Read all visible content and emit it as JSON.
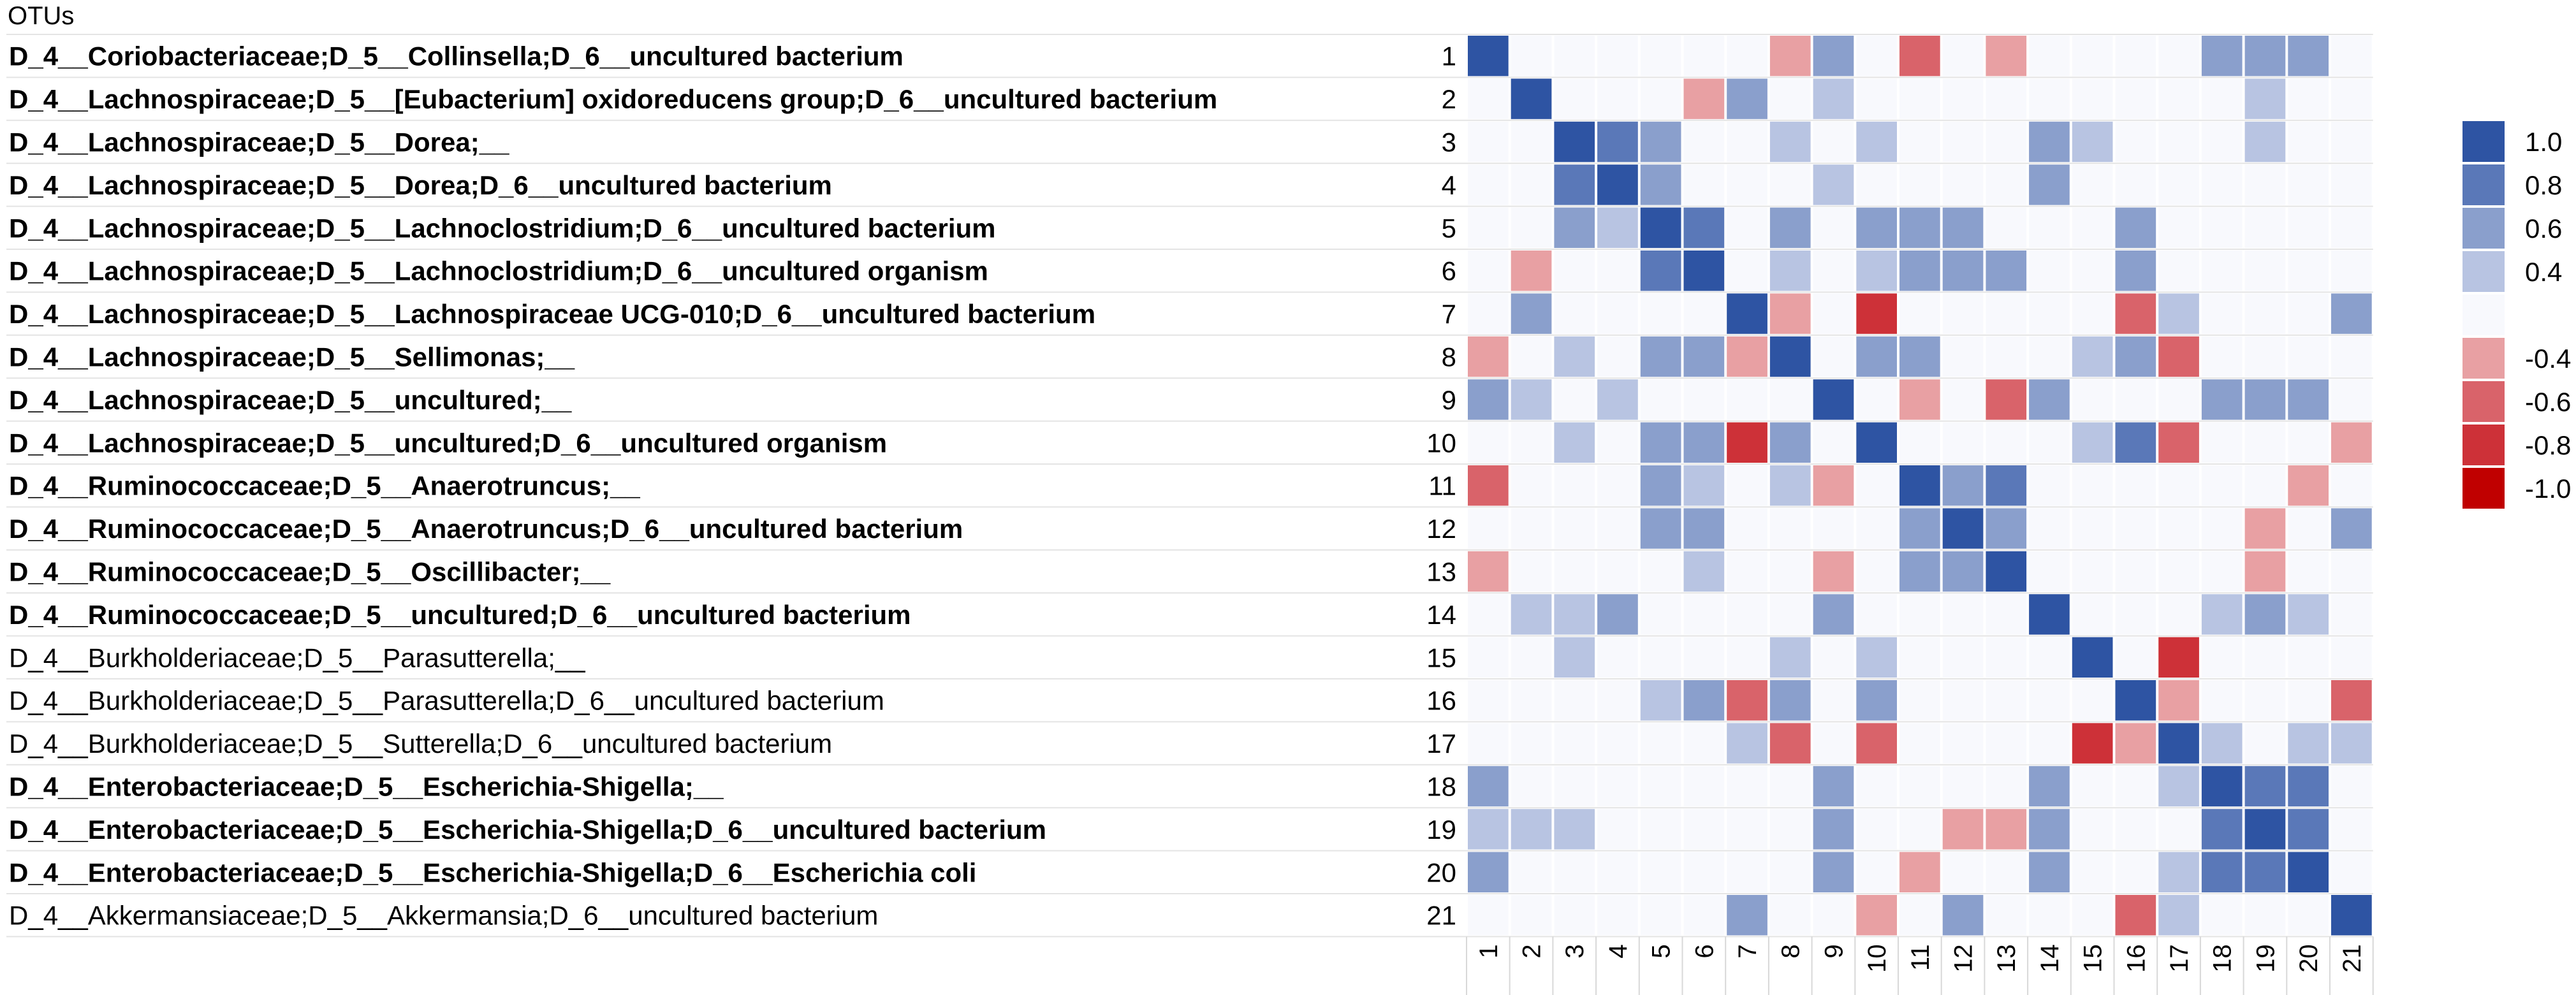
{
  "chart_data": {
    "type": "heatmap",
    "header": "OTUs",
    "rows": [
      {
        "label": "D_4__Coriobacteriaceae;D_5__Collinsella;D_6__uncultured bacterium",
        "bold": true
      },
      {
        "label": "D_4__Lachnospiraceae;D_5__[Eubacterium] oxidoreducens group;D_6__uncultured bacterium",
        "bold": true
      },
      {
        "label": "D_4__Lachnospiraceae;D_5__Dorea;__",
        "bold": true
      },
      {
        "label": "D_4__Lachnospiraceae;D_5__Dorea;D_6__uncultured bacterium",
        "bold": true
      },
      {
        "label": "D_4__Lachnospiraceae;D_5__Lachnoclostridium;D_6__uncultured bacterium",
        "bold": true
      },
      {
        "label": "D_4__Lachnospiraceae;D_5__Lachnoclostridium;D_6__uncultured organism",
        "bold": true
      },
      {
        "label": "D_4__Lachnospiraceae;D_5__Lachnospiraceae UCG-010;D_6__uncultured bacterium",
        "bold": true
      },
      {
        "label": "D_4__Lachnospiraceae;D_5__Sellimonas;__",
        "bold": true
      },
      {
        "label": "D_4__Lachnospiraceae;D_5__uncultured;__",
        "bold": true
      },
      {
        "label": "D_4__Lachnospiraceae;D_5__uncultured;D_6__uncultured organism",
        "bold": true
      },
      {
        "label": "D_4__Ruminococcaceae;D_5__Anaerotruncus;__",
        "bold": true
      },
      {
        "label": "D_4__Ruminococcaceae;D_5__Anaerotruncus;D_6__uncultured bacterium",
        "bold": true
      },
      {
        "label": "D_4__Ruminococcaceae;D_5__Oscillibacter;__",
        "bold": true
      },
      {
        "label": "D_4__Ruminococcaceae;D_5__uncultured;D_6__uncultured bacterium",
        "bold": true
      },
      {
        "label": "D_4__Burkholderiaceae;D_5__Parasutterella;__",
        "bold": false
      },
      {
        "label": "D_4__Burkholderiaceae;D_5__Parasutterella;D_6__uncultured bacterium",
        "bold": false
      },
      {
        "label": "D_4__Burkholderiaceae;D_5__Sutterella;D_6__uncultured bacterium",
        "bold": false
      },
      {
        "label": "D_4__Enterobacteriaceae;D_5__Escherichia-Shigella;__",
        "bold": true
      },
      {
        "label": "D_4__Enterobacteriaceae;D_5__Escherichia-Shigella;D_6__uncultured bacterium",
        "bold": true
      },
      {
        "label": "D_4__Enterobacteriaceae;D_5__Escherichia-Shigella;D_6__Escherichia coli",
        "bold": true
      },
      {
        "label": "D_4__Akkermansiaceae;D_5__Akkermansia;D_6__uncultured bacterium",
        "bold": false
      }
    ],
    "row_numbers": [
      "1",
      "2",
      "3",
      "4",
      "5",
      "6",
      "7",
      "8",
      "9",
      "10",
      "11",
      "12",
      "13",
      "14",
      "15",
      "16",
      "17",
      "18",
      "19",
      "20",
      "21"
    ],
    "col_labels": [
      "1",
      "2",
      "3",
      "4",
      "5",
      "6",
      "7",
      "8",
      "9",
      "10",
      "11",
      "12",
      "13",
      "14",
      "15",
      "16",
      "17",
      "18",
      "19",
      "20",
      "21"
    ],
    "matrix": [
      [
        1,
        0,
        0,
        0,
        0,
        0,
        0,
        -0.4,
        0.6,
        0,
        -0.6,
        0,
        -0.4,
        0,
        0,
        0,
        0,
        0.6,
        0.6,
        0.6,
        0
      ],
      [
        0,
        1,
        0,
        0,
        0,
        -0.4,
        0.6,
        0,
        0.4,
        0,
        0,
        0,
        0,
        0,
        0,
        0,
        0,
        0,
        0.4,
        0,
        0
      ],
      [
        0,
        0,
        1,
        0.8,
        0.6,
        0,
        0,
        0.4,
        0,
        0.4,
        0,
        0,
        0,
        0.6,
        0.4,
        0,
        0,
        0,
        0.4,
        0,
        0
      ],
      [
        0,
        0,
        0.8,
        1,
        0.6,
        0,
        0,
        0,
        0.4,
        0,
        0,
        0,
        0,
        0.6,
        0,
        0,
        0,
        0,
        0,
        0,
        0
      ],
      [
        0,
        0,
        0.6,
        0.4,
        1,
        0.8,
        0,
        0.6,
        0,
        0.6,
        0.6,
        0.6,
        0,
        0,
        0,
        0.6,
        0,
        0,
        0,
        0,
        0
      ],
      [
        0,
        -0.4,
        0,
        0,
        0.8,
        1,
        0,
        0.4,
        0,
        0.4,
        0.6,
        0.6,
        0.6,
        0,
        0,
        0.6,
        0,
        0,
        0,
        0,
        0
      ],
      [
        0,
        0.6,
        0,
        0,
        0,
        0,
        1,
        -0.4,
        0,
        -0.8,
        0,
        0,
        0,
        0,
        0,
        -0.6,
        0.4,
        0,
        0,
        0,
        0.6
      ],
      [
        -0.4,
        0,
        0.4,
        0,
        0.6,
        0.6,
        -0.4,
        1,
        0,
        0.6,
        0.6,
        0,
        0,
        0,
        0.4,
        0.6,
        -0.6,
        0,
        0,
        0,
        0
      ],
      [
        0.6,
        0.4,
        0,
        0.4,
        0,
        0,
        0,
        0,
        1,
        0,
        -0.4,
        0,
        -0.6,
        0.6,
        0,
        0,
        0,
        0.6,
        0.6,
        0.6,
        0
      ],
      [
        0,
        0,
        0.4,
        0,
        0.6,
        0.6,
        -0.8,
        0.6,
        0,
        1,
        0,
        0,
        0,
        0,
        0.4,
        0.8,
        -0.6,
        0,
        0,
        0,
        -0.4
      ],
      [
        -0.6,
        0,
        0,
        0,
        0.6,
        0.4,
        0,
        0.4,
        -0.4,
        0,
        1,
        0.6,
        0.8,
        0,
        0,
        0,
        0,
        0,
        0,
        -0.4,
        0
      ],
      [
        0,
        0,
        0,
        0,
        0.6,
        0.6,
        0,
        0,
        0,
        0,
        0.6,
        1,
        0.6,
        0,
        0,
        0,
        0,
        0,
        -0.4,
        0,
        0.6
      ],
      [
        -0.4,
        0,
        0,
        0,
        0,
        0.4,
        0,
        0,
        -0.4,
        0,
        0.6,
        0.6,
        1,
        0,
        0,
        0,
        0,
        0,
        -0.4,
        0,
        0
      ],
      [
        0,
        0.4,
        0.4,
        0.6,
        0,
        0,
        0,
        0,
        0.6,
        0,
        0,
        0,
        0,
        1,
        0,
        0,
        0,
        0.4,
        0.6,
        0.4,
        0
      ],
      [
        0,
        0,
        0.4,
        0,
        0,
        0,
        0,
        0.4,
        0,
        0.4,
        0,
        0,
        0,
        0,
        1,
        0,
        -0.8,
        0,
        0,
        0,
        0
      ],
      [
        0,
        0,
        0,
        0,
        0.4,
        0.6,
        -0.6,
        0.6,
        0,
        0.6,
        0,
        0,
        0,
        0,
        0,
        1,
        -0.4,
        0,
        0,
        0,
        -0.6
      ],
      [
        0,
        0,
        0,
        0,
        0,
        0,
        0.4,
        -0.6,
        0,
        -0.6,
        0,
        0,
        0,
        0,
        -0.8,
        -0.4,
        1,
        0.4,
        0,
        0.4,
        0.4
      ],
      [
        0.6,
        0,
        0,
        0,
        0,
        0,
        0,
        0,
        0.6,
        0,
        0,
        0,
        0,
        0.6,
        0,
        0,
        0.4,
        1,
        0.8,
        0.8,
        0
      ],
      [
        0.4,
        0.4,
        0.4,
        0,
        0,
        0,
        0,
        0,
        0.6,
        0,
        0,
        -0.4,
        -0.4,
        0.6,
        0,
        0,
        0,
        0.8,
        1,
        0.8,
        0
      ],
      [
        0.6,
        0,
        0,
        0,
        0,
        0,
        0,
        0,
        0.6,
        0,
        -0.4,
        0,
        0,
        0.6,
        0,
        0,
        0.4,
        0.8,
        0.8,
        1,
        0
      ],
      [
        0,
        0,
        0,
        0,
        0,
        0,
        0.6,
        0,
        0,
        -0.4,
        0,
        0.6,
        0,
        0,
        0,
        -0.6,
        0.4,
        0,
        0,
        0,
        1
      ]
    ],
    "legend": {
      "values": [
        1.0,
        0.8,
        0.6,
        0.4,
        0,
        -0.4,
        -0.6,
        -0.8,
        -1.0
      ],
      "labels": [
        "1.0",
        "0.8",
        "0.6",
        "0.4",
        "",
        "-0.4",
        "-0.6",
        "-0.8",
        "-1.0"
      ]
    },
    "colors": {
      "1.0": "#2e54a3",
      "0.8": "#5a78b8",
      "0.6": "#8a9fcc",
      "0.4": "#b8c4e2",
      "0": "#f8f9fd",
      "-0.4": "#e8a0a3",
      "-0.6": "#d9636a",
      "-0.8": "#cd3138",
      "-1.0": "#c00000"
    }
  }
}
